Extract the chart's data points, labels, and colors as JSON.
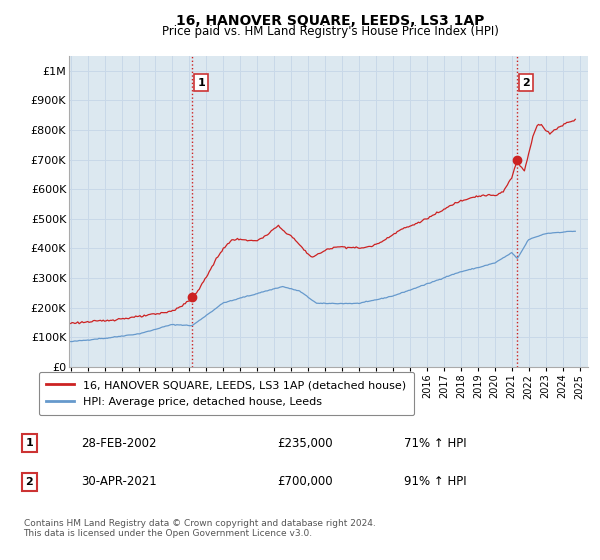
{
  "title": "16, HANOVER SQUARE, LEEDS, LS3 1AP",
  "subtitle": "Price paid vs. HM Land Registry's House Price Index (HPI)",
  "ytick_values": [
    0,
    100000,
    200000,
    300000,
    400000,
    500000,
    600000,
    700000,
    800000,
    900000,
    1000000
  ],
  "ylim": [
    0,
    1050000
  ],
  "xlim_start": 1994.9,
  "xlim_end": 2025.5,
  "grid_color": "#c8d8e8",
  "background_color": "#ffffff",
  "plot_bg_color": "#dce8f0",
  "red_line_color": "#cc2222",
  "blue_line_color": "#6699cc",
  "sale1_x": 2002.16,
  "sale1_y": 235000,
  "sale1_label": "1",
  "sale2_x": 2021.33,
  "sale2_y": 700000,
  "sale2_label": "2",
  "vline1_x": 2002.16,
  "vline2_x": 2021.33,
  "vline_color": "#cc2222",
  "vline_style": ":",
  "legend_line1": "16, HANOVER SQUARE, LEEDS, LS3 1AP (detached house)",
  "legend_line2": "HPI: Average price, detached house, Leeds",
  "table_row1": [
    "1",
    "28-FEB-2002",
    "£235,000",
    "71% ↑ HPI"
  ],
  "table_row2": [
    "2",
    "30-APR-2021",
    "£700,000",
    "91% ↑ HPI"
  ],
  "footer": "Contains HM Land Registry data © Crown copyright and database right 2024.\nThis data is licensed under the Open Government Licence v3.0."
}
